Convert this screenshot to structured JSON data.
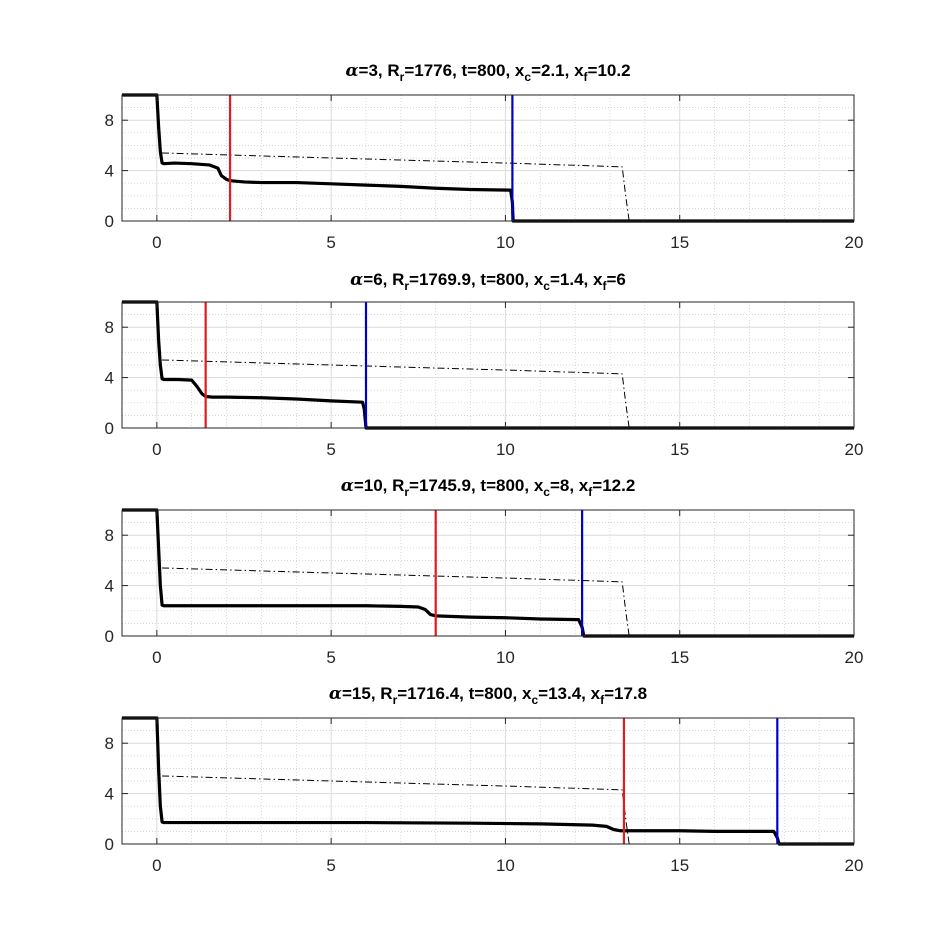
{
  "chart_data": [
    {
      "type": "line",
      "title_parts": {
        "alpha": "α",
        "eq1": "=3, R",
        "sub_r": "r",
        "eq2": "=1776, t=800, x",
        "sub_c": "c",
        "eq3": "=2.1, x",
        "sub_f": "f",
        "eq4": "=10.2"
      },
      "xlim": [
        -1,
        20
      ],
      "ylim": [
        0,
        10
      ],
      "xticks": [
        0,
        5,
        10,
        15,
        20
      ],
      "xtick_labels": [
        "0",
        "5",
        "10",
        "15",
        "20"
      ],
      "yticks": [
        0,
        4,
        8
      ],
      "ytick_labels": [
        "0",
        "4",
        "8"
      ],
      "grid": true,
      "minor_grid": true,
      "series": [
        {
          "style": "solid-thick",
          "color": "#000000",
          "x": [
            -1,
            0,
            0.05,
            0.1,
            0.15,
            0.2,
            0.5,
            1.0,
            1.5,
            1.75,
            1.85,
            2.0,
            2.1,
            2.5,
            3,
            4,
            5,
            6,
            7,
            8,
            9,
            10.15,
            10.2,
            10.22,
            20
          ],
          "y": [
            10,
            10,
            7.5,
            5.5,
            4.6,
            4.55,
            4.6,
            4.55,
            4.45,
            4.2,
            3.6,
            3.3,
            3.2,
            3.1,
            3.05,
            3.05,
            2.95,
            2.85,
            2.75,
            2.6,
            2.5,
            2.45,
            1.5,
            0,
            0
          ]
        },
        {
          "style": "dashdot-thin",
          "color": "#000000",
          "x": [
            0.15,
            5,
            10,
            13.35,
            13.45,
            13.55,
            20
          ],
          "y": [
            5.4,
            5.0,
            4.6,
            4.3,
            2,
            0,
            0
          ]
        }
      ],
      "vlines": [
        {
          "x": 2.1,
          "color": "#e41a1c"
        },
        {
          "x": 10.2,
          "color": "#0000cc"
        }
      ]
    },
    {
      "type": "line",
      "title_parts": {
        "alpha": "α",
        "eq1": "=6, R",
        "sub_r": "r",
        "eq2": "=1769.9, t=800, x",
        "sub_c": "c",
        "eq3": "=1.4, x",
        "sub_f": "f",
        "eq4": "=6"
      },
      "xlim": [
        -1,
        20
      ],
      "ylim": [
        0,
        10
      ],
      "xticks": [
        0,
        5,
        10,
        15,
        20
      ],
      "xtick_labels": [
        "0",
        "5",
        "10",
        "15",
        "20"
      ],
      "yticks": [
        0,
        4,
        8
      ],
      "ytick_labels": [
        "0",
        "4",
        "8"
      ],
      "grid": true,
      "minor_grid": true,
      "series": [
        {
          "style": "solid-thick",
          "color": "#000000",
          "x": [
            -1,
            0,
            0.05,
            0.1,
            0.15,
            0.2,
            0.6,
            1.0,
            1.15,
            1.3,
            1.4,
            1.6,
            2.0,
            3,
            4,
            5,
            5.9,
            5.95,
            6.0,
            20
          ],
          "y": [
            10,
            10,
            7,
            5,
            3.9,
            3.85,
            3.85,
            3.8,
            3.3,
            2.7,
            2.5,
            2.45,
            2.45,
            2.4,
            2.3,
            2.15,
            2.05,
            1.5,
            0,
            0
          ]
        },
        {
          "style": "dashdot-thin",
          "color": "#000000",
          "x": [
            0.15,
            5,
            10,
            13.35,
            13.45,
            13.55,
            20
          ],
          "y": [
            5.4,
            5.0,
            4.6,
            4.3,
            2,
            0,
            0
          ]
        }
      ],
      "vlines": [
        {
          "x": 1.4,
          "color": "#e41a1c"
        },
        {
          "x": 6.0,
          "color": "#0000cc"
        }
      ]
    },
    {
      "type": "line",
      "title_parts": {
        "alpha": "α",
        "eq1": "=10, R",
        "sub_r": "r",
        "eq2": "=1745.9, t=800, x",
        "sub_c": "c",
        "eq3": "=8, x",
        "sub_f": "f",
        "eq4": "=12.2"
      },
      "xlim": [
        -1,
        20
      ],
      "ylim": [
        0,
        10
      ],
      "xticks": [
        0,
        5,
        10,
        15,
        20
      ],
      "xtick_labels": [
        "0",
        "5",
        "10",
        "15",
        "20"
      ],
      "yticks": [
        0,
        4,
        8
      ],
      "ytick_labels": [
        "0",
        "4",
        "8"
      ],
      "grid": true,
      "minor_grid": true,
      "series": [
        {
          "style": "solid-thick",
          "color": "#000000",
          "x": [
            -1,
            0,
            0.05,
            0.1,
            0.15,
            0.2,
            2,
            4,
            6,
            7,
            7.5,
            7.7,
            7.85,
            8.0,
            9,
            10,
            11,
            12.1,
            12.2,
            12.25,
            20
          ],
          "y": [
            10,
            10,
            7,
            4,
            2.45,
            2.4,
            2.4,
            2.4,
            2.4,
            2.35,
            2.3,
            2.1,
            1.7,
            1.6,
            1.5,
            1.45,
            1.35,
            1.3,
            0.7,
            0,
            0
          ]
        },
        {
          "style": "dashdot-thin",
          "color": "#000000",
          "x": [
            0.15,
            5,
            10,
            13.35,
            13.45,
            13.55,
            20
          ],
          "y": [
            5.4,
            5.0,
            4.6,
            4.3,
            2,
            0,
            0
          ]
        }
      ],
      "vlines": [
        {
          "x": 8.0,
          "color": "#e41a1c"
        },
        {
          "x": 12.2,
          "color": "#0000cc"
        }
      ]
    },
    {
      "type": "line",
      "title_parts": {
        "alpha": "α",
        "eq1": "=15, R",
        "sub_r": "r",
        "eq2": "=1716.4, t=800, x",
        "sub_c": "c",
        "eq3": "=13.4, x",
        "sub_f": "f",
        "eq4": "=17.8"
      },
      "xlim": [
        -1,
        20
      ],
      "ylim": [
        0,
        10
      ],
      "xticks": [
        0,
        5,
        10,
        15,
        20
      ],
      "xtick_labels": [
        "0",
        "5",
        "10",
        "15",
        "20"
      ],
      "yticks": [
        0,
        4,
        8
      ],
      "ytick_labels": [
        "0",
        "4",
        "8"
      ],
      "grid": true,
      "minor_grid": true,
      "series": [
        {
          "style": "solid-thick",
          "color": "#000000",
          "x": [
            -1,
            0,
            0.05,
            0.1,
            0.15,
            0.2,
            3,
            6,
            9,
            11,
            12.5,
            12.9,
            13.1,
            13.3,
            13.4,
            14,
            15,
            16,
            17.7,
            17.8,
            17.85,
            20
          ],
          "y": [
            10,
            10,
            6,
            3,
            1.75,
            1.7,
            1.7,
            1.7,
            1.65,
            1.6,
            1.5,
            1.4,
            1.15,
            1.05,
            1.05,
            1.05,
            1.05,
            1.0,
            1.0,
            0.5,
            0,
            0
          ]
        },
        {
          "style": "dashdot-thin",
          "color": "#000000",
          "x": [
            0.15,
            5,
            10,
            13.35,
            13.45,
            13.55,
            20
          ],
          "y": [
            5.4,
            5.0,
            4.6,
            4.3,
            2,
            0,
            0
          ]
        }
      ],
      "vlines": [
        {
          "x": 13.4,
          "color": "#e41a1c"
        },
        {
          "x": 17.8,
          "color": "#0000cc"
        }
      ]
    }
  ]
}
